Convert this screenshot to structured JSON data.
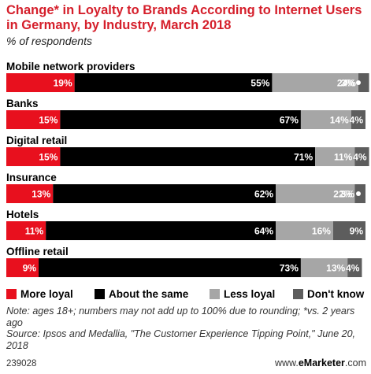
{
  "header": {
    "title": "Change* in Loyalty to Brands According to Internet Users in Germany, by Industry, March 2018",
    "subtitle": "% of respondents"
  },
  "chart_data": {
    "type": "bar",
    "orientation": "horizontal",
    "stacked": true,
    "categories": [
      "Mobile network providers",
      "Banks",
      "Digital retail",
      "Insurance",
      "Hotels",
      "Offline retail"
    ],
    "series": [
      {
        "name": "More loyal",
        "color": "#e8101e",
        "values": [
          19,
          15,
          15,
          13,
          11,
          9
        ],
        "labels": [
          "19%",
          "15%",
          "15%",
          "13%",
          "11%",
          "9%"
        ]
      },
      {
        "name": "About the same",
        "color": "#000000",
        "values": [
          55,
          67,
          71,
          62,
          64,
          73
        ],
        "labels": [
          "55%",
          "67%",
          "71%",
          "62%",
          "64%",
          "73%"
        ]
      },
      {
        "name": "Less loyal",
        "color": "#a6a6a6",
        "values": [
          24,
          14,
          11,
          22,
          16,
          13
        ],
        "labels": [
          "24%",
          "14%",
          "11%",
          "22%",
          "16%",
          "13%"
        ]
      },
      {
        "name": "Don't know",
        "color": "#5d5d5d",
        "values": [
          3,
          4,
          4,
          3,
          9,
          4
        ],
        "labels": [
          "3%",
          "4%",
          "4%",
          "3%",
          "9%",
          "4%"
        ]
      }
    ],
    "xlim": [
      0,
      100
    ],
    "bubble_markers": [
      0,
      3
    ],
    "legend": "bottom"
  },
  "footer": {
    "note": "Note: ages 18+; numbers may not add up to 100% due to rounding; *vs. 2 years ago",
    "source": "Source: Ipsos and Medallia, \"The Customer Experience Tipping Point,\" June 20, 2018",
    "chart_id": "239028",
    "logo_prefix": "www.",
    "logo_brand": "eMarketer",
    "logo_suffix": ".com"
  }
}
